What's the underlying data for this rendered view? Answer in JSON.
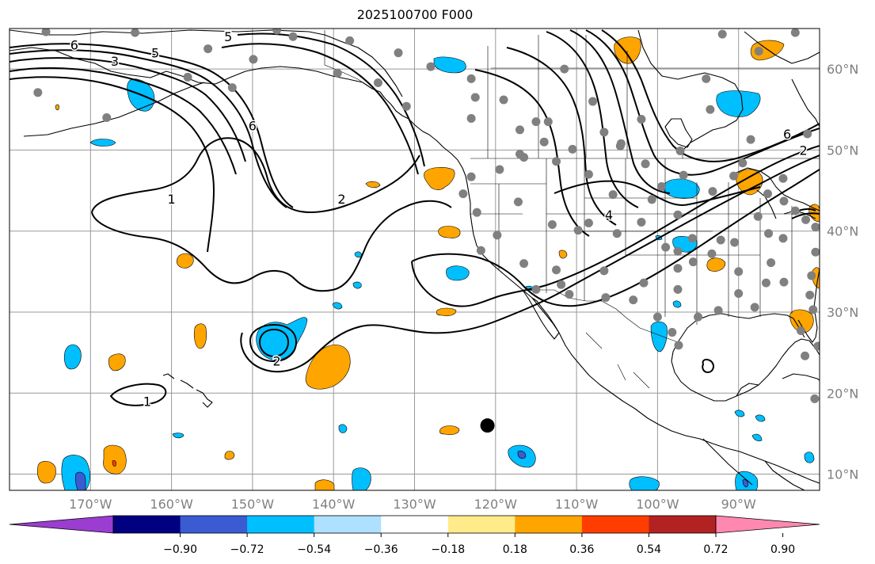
{
  "title": "2025100700 F000",
  "map": {
    "projection": "equirectangular",
    "lon_range": [
      -180,
      -80
    ],
    "lat_range": [
      8,
      65
    ],
    "gridline_color": "#999999"
  },
  "lon_ticks": [
    {
      "lon": -170,
      "label": "170°W"
    },
    {
      "lon": -160,
      "label": "160°W"
    },
    {
      "lon": -150,
      "label": "150°W"
    },
    {
      "lon": -140,
      "label": "140°W"
    },
    {
      "lon": -130,
      "label": "130°W"
    },
    {
      "lon": -120,
      "label": "120°W"
    },
    {
      "lon": -110,
      "label": "110°W"
    },
    {
      "lon": -100,
      "label": "100°W"
    },
    {
      "lon": -90,
      "label": "90°W"
    }
  ],
  "lat_ticks": [
    {
      "lat": 60,
      "label": "60°N"
    },
    {
      "lat": 50,
      "label": "50°N"
    },
    {
      "lat": 40,
      "label": "40°N"
    },
    {
      "lat": 30,
      "label": "30°N"
    },
    {
      "lat": 20,
      "label": "20°N"
    },
    {
      "lat": 10,
      "label": "10°N"
    }
  ],
  "contour_labels": [
    {
      "text": "6",
      "lon": -172,
      "lat": 63
    },
    {
      "text": "3",
      "lon": -167,
      "lat": 61
    },
    {
      "text": "5",
      "lon": -162,
      "lat": 62
    },
    {
      "text": "5",
      "lon": -153,
      "lat": 64
    },
    {
      "text": "6",
      "lon": -150,
      "lat": 53
    },
    {
      "text": "1",
      "lon": -160,
      "lat": 44
    },
    {
      "text": "2",
      "lon": -139,
      "lat": 44
    },
    {
      "text": "2",
      "lon": -147,
      "lat": 24
    },
    {
      "text": "1",
      "lon": -163,
      "lat": 19
    },
    {
      "text": "4",
      "lon": -106,
      "lat": 42
    },
    {
      "text": "6",
      "lon": -84,
      "lat": 52
    },
    {
      "text": "2",
      "lon": -82,
      "lat": 50
    }
  ],
  "stations": [
    {
      "lon": -175.5,
      "lat": 64.6
    },
    {
      "lon": -164.5,
      "lat": 64.5
    },
    {
      "lon": -155.5,
      "lat": 62.5
    },
    {
      "lon": -147,
      "lat": 64.8
    },
    {
      "lon": -145,
      "lat": 64
    },
    {
      "lon": -138,
      "lat": 63.5
    },
    {
      "lon": -149.9,
      "lat": 61.2
    },
    {
      "lon": -158,
      "lat": 59
    },
    {
      "lon": -176.5,
      "lat": 57.1
    },
    {
      "lon": -168,
      "lat": 54
    },
    {
      "lon": -152.5,
      "lat": 57.7
    },
    {
      "lon": -139.5,
      "lat": 59.5
    },
    {
      "lon": -134.5,
      "lat": 58.3
    },
    {
      "lon": -131,
      "lat": 55.4
    },
    {
      "lon": -132,
      "lat": 62
    },
    {
      "lon": -128,
      "lat": 60.3
    },
    {
      "lon": -123,
      "lat": 58.8
    },
    {
      "lon": -122.5,
      "lat": 56.5
    },
    {
      "lon": -123,
      "lat": 53.9
    },
    {
      "lon": -119,
      "lat": 56.2
    },
    {
      "lon": -117,
      "lat": 49.5
    },
    {
      "lon": -115,
      "lat": 53.5
    },
    {
      "lon": -113.5,
      "lat": 53.5
    },
    {
      "lon": -114,
      "lat": 51
    },
    {
      "lon": -110.5,
      "lat": 50.1
    },
    {
      "lon": -106.6,
      "lat": 52.2
    },
    {
      "lon": -104.6,
      "lat": 50.5
    },
    {
      "lon": -108,
      "lat": 56
    },
    {
      "lon": -102,
      "lat": 53.8
    },
    {
      "lon": -97.2,
      "lat": 49.9
    },
    {
      "lon": -94,
      "lat": 58.8
    },
    {
      "lon": -92,
      "lat": 64.3
    },
    {
      "lon": -87.5,
      "lat": 62.2
    },
    {
      "lon": -93.5,
      "lat": 55
    },
    {
      "lon": -88.5,
      "lat": 51.3
    },
    {
      "lon": -89.5,
      "lat": 48.4
    },
    {
      "lon": -83,
      "lat": 64.5
    },
    {
      "lon": -81.5,
      "lat": 52
    },
    {
      "lon": -111.5,
      "lat": 60
    },
    {
      "lon": -117,
      "lat": 52.5
    },
    {
      "lon": -116.5,
      "lat": 49.1
    },
    {
      "lon": -112.5,
      "lat": 48.6
    },
    {
      "lon": -108.5,
      "lat": 47
    },
    {
      "lon": -104.5,
      "lat": 50.8
    },
    {
      "lon": -101.5,
      "lat": 48.3
    },
    {
      "lon": -99.5,
      "lat": 45.5
    },
    {
      "lon": -96.8,
      "lat": 46.9
    },
    {
      "lon": -93.2,
      "lat": 44.9
    },
    {
      "lon": -90.6,
      "lat": 46.8
    },
    {
      "lon": -86.4,
      "lat": 44.6
    },
    {
      "lon": -84.5,
      "lat": 46.5
    },
    {
      "lon": -119.5,
      "lat": 47.6
    },
    {
      "lon": -123,
      "lat": 46.7
    },
    {
      "lon": -124,
      "lat": 44.6
    },
    {
      "lon": -122.3,
      "lat": 42.3
    },
    {
      "lon": -119.8,
      "lat": 39.5
    },
    {
      "lon": -121.8,
      "lat": 37.6
    },
    {
      "lon": -117.2,
      "lat": 43.6
    },
    {
      "lon": -113,
      "lat": 40.8
    },
    {
      "lon": -116.5,
      "lat": 36
    },
    {
      "lon": -115,
      "lat": 32.8
    },
    {
      "lon": -110.9,
      "lat": 32.2
    },
    {
      "lon": -112.5,
      "lat": 35.2
    },
    {
      "lon": -106.6,
      "lat": 35.1
    },
    {
      "lon": -109.8,
      "lat": 40.1
    },
    {
      "lon": -105,
      "lat": 39.7
    },
    {
      "lon": -102,
      "lat": 41.1
    },
    {
      "lon": -100.7,
      "lat": 43.9
    },
    {
      "lon": -97.5,
      "lat": 42
    },
    {
      "lon": -95.7,
      "lat": 39.1
    },
    {
      "lon": -97.5,
      "lat": 37.5
    },
    {
      "lon": -97.5,
      "lat": 35.4
    },
    {
      "lon": -97.5,
      "lat": 32.8
    },
    {
      "lon": -101.7,
      "lat": 33.6
    },
    {
      "lon": -106.4,
      "lat": 31.8
    },
    {
      "lon": -100,
      "lat": 29.4
    },
    {
      "lon": -97.4,
      "lat": 25.9
    },
    {
      "lon": -95,
      "lat": 29.4
    },
    {
      "lon": -92.5,
      "lat": 30.2
    },
    {
      "lon": -90,
      "lat": 32.3
    },
    {
      "lon": -86.6,
      "lat": 33.6
    },
    {
      "lon": -84.4,
      "lat": 33.7
    },
    {
      "lon": -81.2,
      "lat": 32.1
    },
    {
      "lon": -82.3,
      "lat": 27.7
    },
    {
      "lon": -81.8,
      "lat": 24.6
    },
    {
      "lon": -80.2,
      "lat": 25.8
    },
    {
      "lon": -88,
      "lat": 30.6
    },
    {
      "lon": -90,
      "lat": 35
    },
    {
      "lon": -93.3,
      "lat": 37.2
    },
    {
      "lon": -92.2,
      "lat": 38.9
    },
    {
      "lon": -87.6,
      "lat": 41.8
    },
    {
      "lon": -86.3,
      "lat": 39.7
    },
    {
      "lon": -84.5,
      "lat": 39.1
    },
    {
      "lon": -83,
      "lat": 42.5
    },
    {
      "lon": -80.5,
      "lat": 40.5
    },
    {
      "lon": -81.7,
      "lat": 41.4
    },
    {
      "lon": -84.4,
      "lat": 43.7
    },
    {
      "lon": -86,
      "lat": 36.1
    },
    {
      "lon": -81,
      "lat": 34.5
    },
    {
      "lon": -80.5,
      "lat": 37.4
    },
    {
      "lon": -90.5,
      "lat": 38.6
    },
    {
      "lon": -95.6,
      "lat": 36.2
    },
    {
      "lon": -99,
      "lat": 38
    },
    {
      "lon": -103,
      "lat": 31.5
    },
    {
      "lon": -98.2,
      "lat": 27.5
    },
    {
      "lon": -105.5,
      "lat": 44.5
    },
    {
      "lon": -108.5,
      "lat": 41
    },
    {
      "lon": -111.9,
      "lat": 33.4
    },
    {
      "lon": -80.8,
      "lat": 30.3
    },
    {
      "lon": -80.6,
      "lat": 19.3
    }
  ],
  "highlighted_point": {
    "lon": -121,
    "lat": 16
  },
  "colorbar": {
    "colors": [
      "#9a3dd0",
      "#000080",
      "#3a5bd1",
      "#00bfff",
      "#aee0ff",
      "#ffffff",
      "#ffeb8a",
      "#ffa500",
      "#ff3d00",
      "#b22222",
      "#ff88b0"
    ],
    "tick_labels": [
      "−0.90",
      "−0.72",
      "−0.54",
      "−0.36",
      "−0.18",
      "0.18",
      "0.36",
      "0.54",
      "0.72",
      "0.90"
    ]
  }
}
